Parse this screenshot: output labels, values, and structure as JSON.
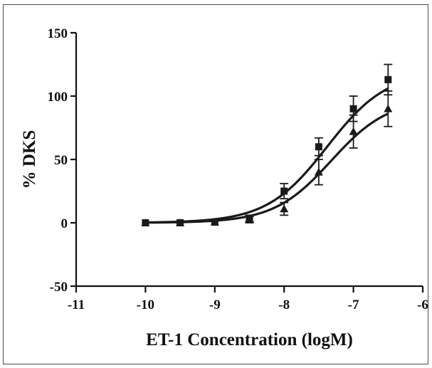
{
  "chart_data": {
    "type": "scatter",
    "xlabel": "ET-1 Concentration (logM)",
    "ylabel": "% DKS",
    "xlim": [
      -11,
      -6
    ],
    "ylim": [
      -50,
      150
    ],
    "x_ticks": [
      -11,
      -10,
      -9,
      -8,
      -7,
      -6
    ],
    "y_ticks": [
      150,
      100,
      50,
      0,
      -50
    ],
    "x_tick_labels": [
      "-11",
      "-10",
      "-9",
      "-8",
      "-7",
      "-6"
    ],
    "y_tick_labels": [
      "150",
      "100",
      "50",
      "0",
      "-50"
    ],
    "grid": false,
    "series": [
      {
        "marker": "square",
        "x": [
          -10,
          -9.5,
          -9,
          -8.5,
          -8,
          -7.5,
          -7,
          -6.5
        ],
        "y": [
          0,
          0,
          0.5,
          3,
          25,
          60,
          90,
          113
        ],
        "error": [
          0,
          0,
          0.5,
          2,
          6,
          7,
          10,
          12
        ],
        "fit": {
          "bottom": 0,
          "top": 120,
          "logEC50": -7.38,
          "hill": 1.0
        }
      },
      {
        "marker": "triangle",
        "x": [
          -10,
          -9.5,
          -9,
          -8.5,
          -8,
          -7.5,
          -7,
          -6.5
        ],
        "y": [
          0,
          0,
          0.5,
          3,
          11,
          40,
          72,
          90
        ],
        "error": [
          0,
          0,
          0.5,
          3,
          5,
          10,
          13,
          14
        ],
        "fit": {
          "bottom": 0,
          "top": 98,
          "logEC50": -7.32,
          "hill": 1.05
        }
      }
    ]
  }
}
